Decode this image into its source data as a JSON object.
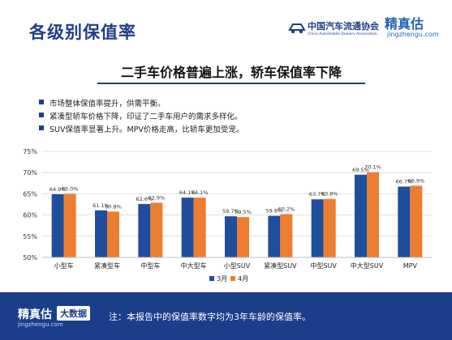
{
  "header": {
    "title": "各级别保值率",
    "association_name_cn": "中国汽车流通协会",
    "association_name_en": "China Automobile Dealers Association",
    "brand_cn": "精真估",
    "brand_en": "jingzhengu.com"
  },
  "subtitle": "二手车价格普遍上涨，轿车保值率下降",
  "bullets": [
    "市场整体保值率提升，供需平衡。",
    "紧凑型轿车价格下降，印证了二手车用户的需求多样化。",
    "SUV保值率显著上升。MPV价格走高，比轿车更加受宠。"
  ],
  "chart_data": {
    "type": "bar",
    "categories": [
      "小型车",
      "紧凑型车",
      "中型车",
      "中大型车",
      "小型SUV",
      "紧凑型SUV",
      "中型SUV",
      "中大型SUV",
      "MPV"
    ],
    "series": [
      {
        "name": "3月",
        "color": "#1f4e9c",
        "values": [
          64.9,
          61.1,
          62.6,
          64.1,
          59.7,
          59.8,
          63.7,
          69.5,
          66.7
        ],
        "labels": [
          "64.9%",
          "61.1%",
          "62.6%",
          "64.1%",
          "59.7%",
          "59.8%",
          "63.7%",
          "69.5%",
          "66.7%"
        ]
      },
      {
        "name": "4月",
        "color": "#ed7d31",
        "values": [
          65.0,
          60.8,
          62.9,
          64.1,
          59.5,
          60.2,
          63.8,
          70.1,
          66.9
        ],
        "labels": [
          "65.0%",
          "60.8%",
          "62.9%",
          "64.1%",
          "59.5%",
          "60.2%",
          "63.8%",
          "70.1%",
          "66.9%"
        ]
      }
    ],
    "yticks": [
      "50%",
      "55%",
      "60%",
      "65%",
      "70%",
      "75%"
    ],
    "ytick_values": [
      50,
      55,
      60,
      65,
      70,
      75
    ],
    "ylim": [
      50,
      75
    ],
    "grid": true,
    "legend_position": "bottom"
  },
  "footer": {
    "brand": "精真估",
    "brand_en": "jingzhengu.com",
    "tag": "大数据",
    "note": "注：本报告中的保值率数字均为3年车龄的保值率。"
  }
}
